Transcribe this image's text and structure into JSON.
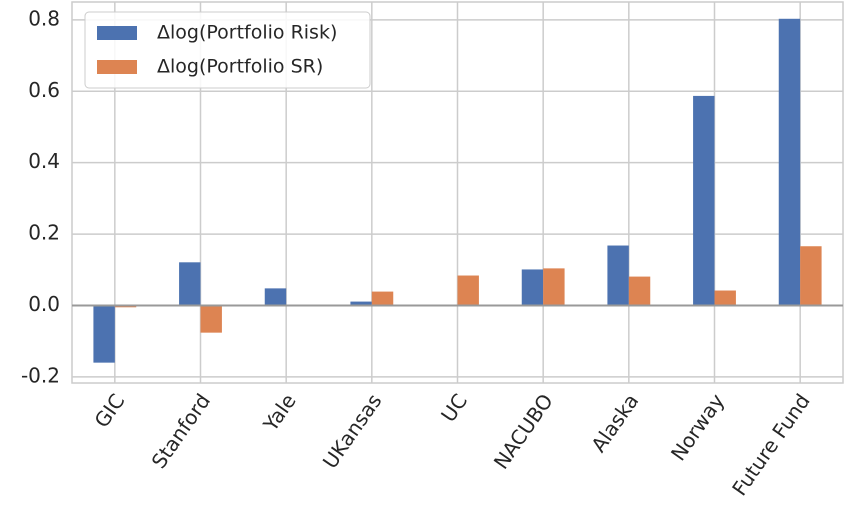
{
  "chart_data": {
    "type": "bar",
    "categories": [
      "GIC",
      "Stanford",
      "Yale",
      "UKansas",
      "UC",
      "NACUBO",
      "Alaska",
      "Norway",
      "Future Fund"
    ],
    "series": [
      {
        "name": "Δlog(Portfolio Risk)",
        "color": "#4c72b0",
        "values": [
          -0.16,
          0.121,
          0.048,
          0.011,
          -0.001,
          0.101,
          0.168,
          0.587,
          0.803
        ]
      },
      {
        "name": "Δlog(Portfolio SR)",
        "color": "#dd8452",
        "values": [
          -0.005,
          -0.076,
          0.001,
          0.039,
          0.084,
          0.104,
          0.081,
          0.042,
          0.166
        ]
      }
    ],
    "ylim": [
      -0.217,
      0.85
    ],
    "yticks": [
      -0.2,
      {
        "value": 0,
        "label": "0.0"
      },
      0.2,
      0.4,
      0.6,
      0.8
    ],
    "grid": true,
    "legend": "upper left"
  }
}
